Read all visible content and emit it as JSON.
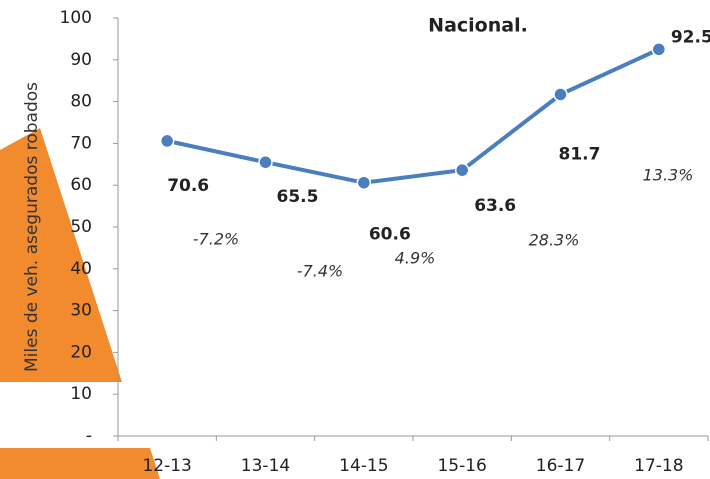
{
  "chart_data": {
    "type": "line",
    "title": "Nacional.",
    "y_label": "Miles de veh. asegurados robados",
    "categories": [
      "12-13",
      "13-14",
      "14-15",
      "15-16",
      "16-17",
      "17-18"
    ],
    "series": [
      {
        "name": null,
        "color": "#4a7ebf",
        "values": [
          70.6,
          65.5,
          60.6,
          63.6,
          81.7,
          92.5
        ]
      }
    ],
    "annotations": [
      "-7.2%",
      "-7.4%",
      "4.9%",
      "28.3%",
      "13.3%"
    ],
    "ylim": [
      0,
      100
    ],
    "yticks": [
      {
        "value": 0,
        "label": "-"
      },
      10,
      20,
      30,
      40,
      50,
      60,
      70,
      80,
      90,
      100
    ],
    "grid": false
  }
}
